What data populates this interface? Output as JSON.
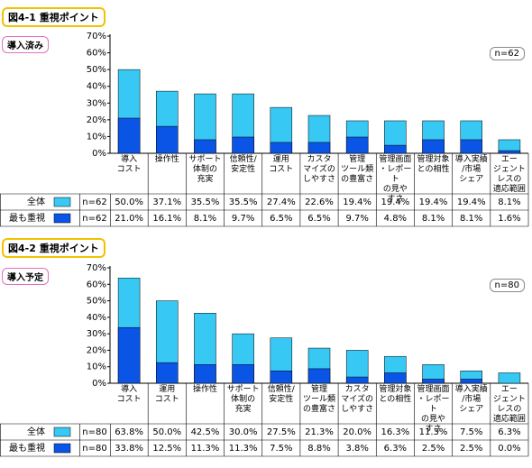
{
  "chart_data": [
    {
      "type": "bar",
      "title": "図4-1 重視ポイント",
      "subtitle": "導入済み",
      "n_label": "n=62",
      "categories": [
        "導入\nコスト",
        "操作性",
        "サポート\n体制の\n充実",
        "信頼性/\n安定性",
        "運用\nコスト",
        "カスタ\nマイズの\nしやすさ",
        "管理\nツール類\nの豊富さ",
        "管理画面\n・レポート\nの見や\nすさ",
        "管理対象\nとの相性",
        "導入実績\n/市場\nシェア",
        "エー\nジェント\nレスの\n適応範囲"
      ],
      "series": [
        {
          "name": "全体",
          "color": "#38c8f4",
          "values": [
            50.0,
            37.1,
            35.5,
            35.5,
            27.4,
            22.6,
            19.4,
            19.4,
            19.4,
            19.4,
            8.1
          ],
          "value_labels": [
            "50.0%",
            "37.1%",
            "35.5%",
            "35.5%",
            "27.4%",
            "22.6%",
            "19.4%",
            "19.4%",
            "19.4%",
            "19.4%",
            "8.1%"
          ]
        },
        {
          "name": "最も重視",
          "color": "#0a55e6",
          "values": [
            21.0,
            16.1,
            8.1,
            9.7,
            6.5,
            6.5,
            9.7,
            4.8,
            8.1,
            8.1,
            1.6
          ],
          "value_labels": [
            "21.0%",
            "16.1%",
            "8.1%",
            "9.7%",
            "6.5%",
            "6.5%",
            "9.7%",
            "4.8%",
            "8.1%",
            "8.1%",
            "1.6%"
          ]
        }
      ],
      "ylim": [
        0,
        70
      ],
      "yticks": [
        {
          "value": 0,
          "label": "0%"
        },
        {
          "value": 10,
          "label": "10%"
        },
        {
          "value": 20,
          "label": "20%"
        },
        {
          "value": 30,
          "label": "30%"
        },
        {
          "value": 40,
          "label": "40%"
        },
        {
          "value": 50,
          "label": "50%"
        },
        {
          "value": 60,
          "label": "60%"
        },
        {
          "value": 70,
          "label": "70%"
        }
      ],
      "grid": false
    },
    {
      "type": "bar",
      "title": "図4-2 重視ポイント",
      "subtitle": "導入予定",
      "n_label": "n=80",
      "categories": [
        "導入\nコスト",
        "運用\nコスト",
        "操作性",
        "サポート\n体制の\n充実",
        "信頼性/\n安定性",
        "管理\nツール類\nの豊富さ",
        "カスタ\nマイズの\nしやすさ",
        "管理対象\nとの相性",
        "管理画面\n・レポート\nの見や\nすさ",
        "導入実績\n/市場\nシェア",
        "エー\nジェント\nレスの\n適応範囲"
      ],
      "series": [
        {
          "name": "全体",
          "color": "#38c8f4",
          "values": [
            63.8,
            50.0,
            42.5,
            30.0,
            27.5,
            21.3,
            20.0,
            16.3,
            11.3,
            7.5,
            6.3
          ],
          "value_labels": [
            "63.8%",
            "50.0%",
            "42.5%",
            "30.0%",
            "27.5%",
            "21.3%",
            "20.0%",
            "16.3%",
            "11.3%",
            "7.5%",
            "6.3%"
          ]
        },
        {
          "name": "最も重視",
          "color": "#0a55e6",
          "values": [
            33.8,
            12.5,
            11.3,
            11.3,
            7.5,
            8.8,
            3.8,
            6.3,
            2.5,
            2.5,
            0.0
          ],
          "value_labels": [
            "33.8%",
            "12.5%",
            "11.3%",
            "11.3%",
            "7.5%",
            "8.8%",
            "3.8%",
            "6.3%",
            "2.5%",
            "2.5%",
            "0.0%"
          ]
        }
      ],
      "ylim": [
        0,
        70
      ],
      "yticks": [
        {
          "value": 0,
          "label": "0%"
        },
        {
          "value": 10,
          "label": "10%"
        },
        {
          "value": 20,
          "label": "20%"
        },
        {
          "value": 30,
          "label": "30%"
        },
        {
          "value": 40,
          "label": "40%"
        },
        {
          "value": 50,
          "label": "50%"
        },
        {
          "value": 60,
          "label": "60%"
        },
        {
          "value": 70,
          "label": "70%"
        }
      ],
      "grid": false
    }
  ]
}
